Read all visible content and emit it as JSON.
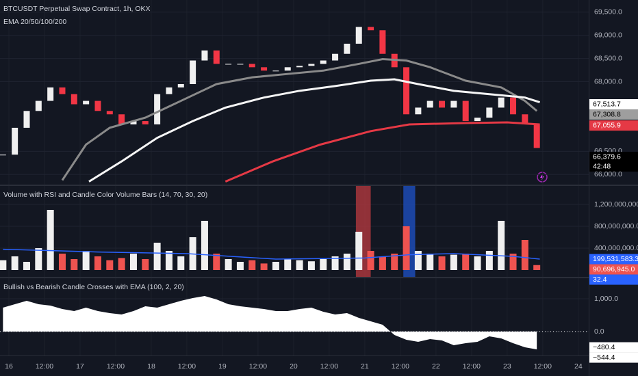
{
  "chart_data": [
    {
      "type": "candlestick",
      "title": "BTCUSDT Perpetual Swap Contract, 1h, OKX",
      "subtitle": "EMA 20/50/100/200",
      "x": [
        -2,
        2,
        6,
        10,
        14,
        18,
        22,
        26,
        30,
        34,
        38,
        42,
        46,
        50,
        54,
        58,
        62,
        66,
        70,
        74,
        78,
        82,
        86,
        90,
        94,
        98,
        102,
        106,
        110,
        114,
        118,
        122,
        126,
        130,
        134,
        138,
        142,
        146,
        150,
        154,
        158,
        162,
        166,
        170,
        174,
        178
      ],
      "values": [
        66428,
        67007,
        67370,
        67587,
        67877,
        67732,
        67514,
        67587,
        67370,
        67297,
        67080,
        67152,
        67080,
        67732,
        67877,
        67949,
        68457,
        68674,
        68384,
        68384,
        68384,
        68312,
        68239,
        68239,
        68312,
        68341,
        68384,
        68457,
        68601,
        68819,
        69181,
        69109,
        68601,
        68312,
        67297,
        67442,
        67587,
        67442,
        67587,
        67152,
        67225,
        67442,
        67659,
        67297,
        67080,
        66572
      ],
      "up_color": "#f0f0f0",
      "down_color": "#f23645",
      "series": [
        {
          "color": "#8a8a8a",
          "x": [
            18,
            26,
            34,
            46,
            58,
            70,
            82,
            94,
            106,
            118,
            126,
            134,
            142,
            154,
            166,
            174,
            178
          ],
          "values": [
            65877,
            66645,
            67007,
            67225,
            67587,
            67949,
            68094,
            68167,
            68239,
            68384,
            68486,
            68457,
            68312,
            68022,
            67877,
            67587,
            67370
          ]
        },
        {
          "color": "#f5f5f5",
          "x": [
            27,
            38,
            50,
            62,
            73,
            86,
            98,
            110,
            122,
            130,
            138,
            150,
            162,
            174,
            179
          ],
          "values": [
            65848,
            66283,
            66790,
            67152,
            67442,
            67659,
            67804,
            67906,
            68022,
            68051,
            67949,
            67804,
            67732,
            67659,
            67558
          ]
        },
        {
          "color": "#e53945",
          "x": [
            73,
            89,
            105,
            122,
            135,
            154,
            168,
            179
          ],
          "values": [
            65848,
            66283,
            66645,
            66935,
            67080,
            67109,
            67123,
            67080
          ]
        }
      ],
      "xlim": [
        -3,
        195.5
      ],
      "ylim": [
        65783,
        69761
      ],
      "yticks": [
        {
          "value": 69500,
          "label": "69,500.0"
        },
        {
          "value": 69000,
          "label": "69,000.0"
        },
        {
          "value": 68500,
          "label": "68,500.0"
        },
        {
          "value": 68000,
          "label": "68,000.0"
        },
        {
          "value": 66500,
          "label": "66,500.0"
        },
        {
          "value": 66000,
          "label": "66,000.0"
        }
      ],
      "last_labels": [
        {
          "value": 67513.7,
          "label": "67,513.7",
          "color": "#ffffff"
        },
        {
          "value": 67308.8,
          "label": "67,308.8",
          "color": "#9e9e9e"
        },
        {
          "value": 67055.9,
          "label": "67,055.9",
          "color": "#e53945"
        },
        {
          "value": 66379.6,
          "label": "66,379.6",
          "color": "#000000",
          "countdown": "42:48"
        }
      ]
    },
    {
      "type": "bar",
      "title": "Volume with RSI and Candle Color Volume Bars (14, 70, 30, 20)",
      "x": [
        -2,
        2,
        6,
        10,
        14,
        18,
        22,
        26,
        30,
        34,
        38,
        42,
        46,
        50,
        54,
        58,
        62,
        66,
        70,
        74,
        78,
        82,
        86,
        90,
        94,
        98,
        102,
        106,
        110,
        114,
        118,
        122,
        126,
        130,
        134,
        138,
        142,
        146,
        150,
        154,
        158,
        162,
        166,
        170,
        174,
        178
      ],
      "values": [
        180000000,
        250000000,
        150000000,
        400000000,
        1100000000,
        300000000,
        200000000,
        350000000,
        250000000,
        180000000,
        220000000,
        300000000,
        200000000,
        500000000,
        350000000,
        250000000,
        600000000,
        900000000,
        300000000,
        200000000,
        150000000,
        180000000,
        120000000,
        150000000,
        200000000,
        180000000,
        160000000,
        200000000,
        250000000,
        300000000,
        700000000,
        350000000,
        250000000,
        300000000,
        800000000,
        350000000,
        300000000,
        250000000,
        280000000,
        300000000,
        250000000,
        350000000,
        900000000,
        300000000,
        550000000,
        90696945
      ],
      "up_color": "#f0f0f0",
      "down_color": "#ef5350",
      "highlights": [
        {
          "x": [
            117,
            122
          ],
          "color": "#b2383e"
        },
        {
          "x": [
            133,
            137
          ],
          "color": "#1e4fbf"
        }
      ],
      "series": [
        {
          "color": "#2962ff",
          "x": [
            -2,
            30,
            60,
            90,
            120,
            135,
            150,
            170,
            179
          ],
          "values": [
            380000000,
            330000000,
            300000000,
            200000000,
            220000000,
            280000000,
            300000000,
            250000000,
            199531583.3
          ]
        }
      ],
      "xlim": [
        -3,
        195.5
      ],
      "ylim": [
        -125000000,
        1537500000
      ],
      "yticks": [
        {
          "value": 1200000000,
          "label": "1,200,000,000.0"
        },
        {
          "value": 800000000,
          "label": "800,000,000.0"
        },
        {
          "value": 400000000,
          "label": "400,000,000.0"
        }
      ],
      "last_labels": [
        {
          "value": 199531583.3,
          "label": "199,531,583.3",
          "color": "#2962ff"
        },
        {
          "value": 90696945,
          "label": "90,696,945.0",
          "color": "#ef5350"
        },
        {
          "value": 32.4,
          "label": "32.4",
          "color": "#2962ff"
        }
      ]
    },
    {
      "type": "area",
      "title": "Bullish vs Bearish Candle Crosses with EMA (100, 2, 20)",
      "color": "#ffffff",
      "x": [
        -2,
        2,
        6,
        10,
        14,
        18,
        22,
        26,
        30,
        34,
        38,
        42,
        46,
        50,
        54,
        58,
        62,
        66,
        70,
        74,
        78,
        82,
        86,
        90,
        94,
        98,
        102,
        106,
        110,
        114,
        118,
        122,
        126,
        130,
        134,
        138,
        142,
        146,
        150,
        154,
        158,
        162,
        166,
        170,
        174,
        178
      ],
      "values": [
        729,
        833,
        938,
        833,
        792,
        688,
        625,
        729,
        625,
        563,
        521,
        625,
        771,
        729,
        833,
        938,
        1021,
        1083,
        979,
        833,
        771,
        729,
        688,
        625,
        625,
        688,
        729,
        604,
        521,
        563,
        417,
        313,
        208,
        -104,
        -250,
        -313,
        -229,
        -271,
        -417,
        -354,
        -313,
        -146,
        -208,
        -354,
        -479,
        -544.4
      ],
      "xlim": [
        -3,
        195.5
      ],
      "ylim": [
        -729,
        1625
      ],
      "yticks": [
        {
          "value": 1000,
          "label": "1,000.0"
        },
        {
          "value": 0,
          "label": "0.0"
        }
      ],
      "xticks": [
        {
          "value": 0,
          "label": "16"
        },
        {
          "value": 12,
          "label": "12:00"
        },
        {
          "value": 24,
          "label": "17"
        },
        {
          "value": 36,
          "label": "12:00"
        },
        {
          "value": 48,
          "label": "18"
        },
        {
          "value": 60,
          "label": "12:00"
        },
        {
          "value": 72,
          "label": "19"
        },
        {
          "value": 84,
          "label": "12:00"
        },
        {
          "value": 96,
          "label": "20"
        },
        {
          "value": 108,
          "label": "12:00"
        },
        {
          "value": 120,
          "label": "21"
        },
        {
          "value": 132,
          "label": "12:00"
        },
        {
          "value": 144,
          "label": "22"
        },
        {
          "value": 156,
          "label": "12:00"
        },
        {
          "value": 168,
          "label": "23"
        },
        {
          "value": 180,
          "label": "12:00"
        },
        {
          "value": 192,
          "label": "24"
        }
      ],
      "last_labels": [
        {
          "value": -480.4,
          "label": "−480.4",
          "color": "#ffffff"
        },
        {
          "value": -544.4,
          "label": "−544.4",
          "color": "#ffffff"
        }
      ]
    }
  ]
}
